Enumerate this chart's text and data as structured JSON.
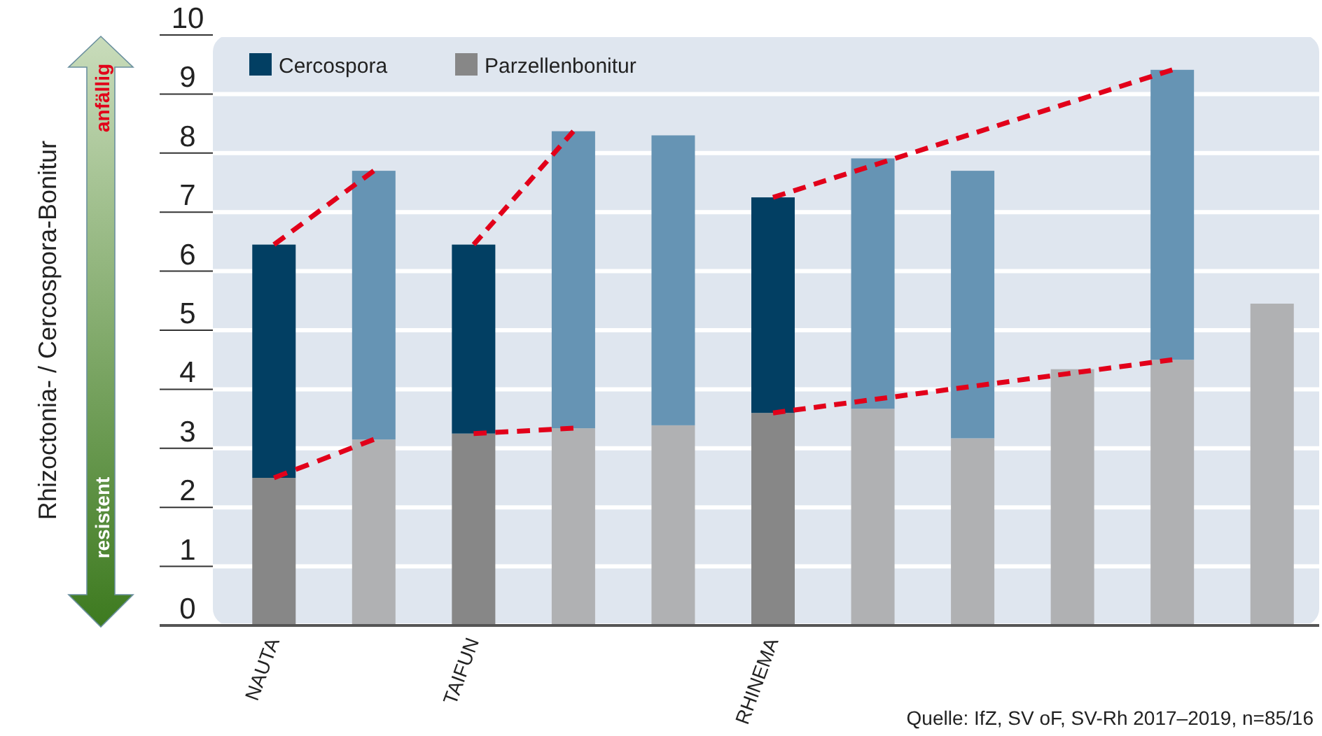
{
  "chart_data": {
    "type": "bar",
    "stacked": true,
    "ylabel": "Rhizoctonia- / Cercospora-Bonitur",
    "categories": [
      "NAUTA",
      null,
      "TAIFUN",
      null,
      null,
      "RHINEMA",
      null,
      null,
      null,
      null,
      null
    ],
    "series": [
      {
        "name": "Parzellenbonitur",
        "color": "#878787",
        "colors": [
          "#878787",
          "#b0b1b3",
          "#878787",
          "#b0b1b3",
          "#b0b1b3",
          "#878787",
          "#b0b1b3",
          "#b0b1b3",
          "#b0b1b3",
          "#b0b1b3",
          "#b0b1b3"
        ],
        "values": [
          2.5,
          3.15,
          3.25,
          3.34,
          3.39,
          3.6,
          3.67,
          3.17,
          4.34,
          4.5,
          5.45
        ]
      },
      {
        "name": "Cercospora",
        "color": "#023f63",
        "colors": [
          "#023f63",
          "#6694b4",
          "#023f63",
          "#6694b4",
          "#6694b4",
          "#023f63",
          "#6694b4",
          "#6694b4",
          null,
          "#6694b4",
          null
        ],
        "values": [
          3.95,
          4.55,
          3.2,
          5.03,
          4.91,
          3.65,
          4.24,
          4.53,
          null,
          4.91,
          null
        ]
      },
      {
        "type": "line",
        "color": "#e2001a",
        "values": [
          6.45,
          7.7,
          null,
          null,
          null,
          null,
          null,
          null,
          null,
          null,
          null
        ]
      },
      {
        "type": "line",
        "color": "#e2001a",
        "values": [
          2.5,
          3.15,
          null,
          null,
          null,
          null,
          null,
          null,
          null,
          null,
          null
        ]
      },
      {
        "type": "line",
        "color": "#e2001a",
        "values": [
          null,
          null,
          6.45,
          8.37,
          null,
          null,
          null,
          null,
          null,
          null,
          null
        ]
      },
      {
        "type": "line",
        "color": "#e2001a",
        "values": [
          null,
          null,
          3.25,
          3.34,
          null,
          null,
          null,
          null,
          null,
          null,
          null
        ]
      },
      {
        "type": "line",
        "color": "#e2001a",
        "values": [
          null,
          null,
          null,
          null,
          null,
          7.25,
          null,
          null,
          null,
          9.41,
          null
        ]
      },
      {
        "type": "line",
        "color": "#e2001a",
        "values": [
          null,
          null,
          null,
          null,
          null,
          3.6,
          null,
          null,
          null,
          4.5,
          null
        ]
      }
    ],
    "line_style": "dashed",
    "marker": "none",
    "ylim": [
      0,
      10
    ],
    "yticks": [
      0,
      1,
      2,
      3,
      4,
      5,
      6,
      7,
      8,
      9,
      10
    ],
    "grid": "y",
    "legend": "top left",
    "annotations": [
      "anfällig",
      "resistent",
      "Quelle: IfZ, SV oF, SV-Rh 2017–2019, n=85/16"
    ]
  }
}
